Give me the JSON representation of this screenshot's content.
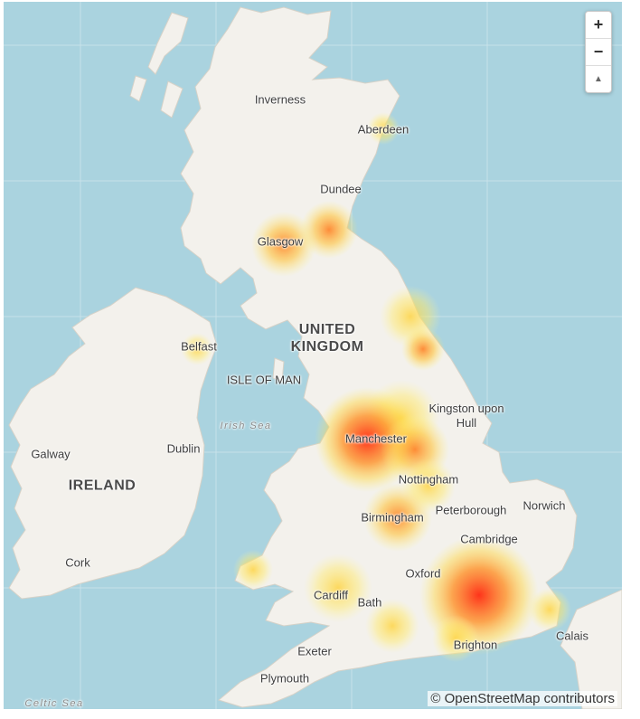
{
  "map": {
    "country_labels": [
      {
        "id": "uk",
        "text": "UNITED\nKINGDOM"
      },
      {
        "id": "ireland",
        "text": "IRELAND"
      }
    ],
    "place_labels": [
      {
        "id": "inverness",
        "text": "Inverness"
      },
      {
        "id": "aberdeen",
        "text": "Aberdeen"
      },
      {
        "id": "dundee",
        "text": "Dundee"
      },
      {
        "id": "glasgow",
        "text": "Glasgow"
      },
      {
        "id": "belfast",
        "text": "Belfast"
      },
      {
        "id": "isle-of-man",
        "text": "ISLE OF MAN"
      },
      {
        "id": "galway",
        "text": "Galway"
      },
      {
        "id": "dublin",
        "text": "Dublin"
      },
      {
        "id": "cork",
        "text": "Cork"
      },
      {
        "id": "kingston",
        "text": "Kingston upon\nHull"
      },
      {
        "id": "manchester",
        "text": "Manchester"
      },
      {
        "id": "nottingham",
        "text": "Nottingham"
      },
      {
        "id": "birmingham",
        "text": "Birmingham"
      },
      {
        "id": "peterborough",
        "text": "Peterborough"
      },
      {
        "id": "norwich",
        "text": "Norwich"
      },
      {
        "id": "cambridge",
        "text": "Cambridge"
      },
      {
        "id": "oxford",
        "text": "Oxford"
      },
      {
        "id": "cardiff",
        "text": "Cardiff"
      },
      {
        "id": "bath",
        "text": "Bath"
      },
      {
        "id": "calais",
        "text": "Calais"
      },
      {
        "id": "exeter",
        "text": "Exeter"
      },
      {
        "id": "brighton",
        "text": "Brighton"
      },
      {
        "id": "plymouth",
        "text": "Plymouth"
      }
    ],
    "sea_labels": [
      {
        "id": "irish-sea",
        "text": "Irish Sea"
      },
      {
        "id": "celtic-sea",
        "text": "Celtic Sea"
      }
    ],
    "heat_spots": [
      {
        "place": "glasgow",
        "intensity": 0.45
      },
      {
        "place": "edinburgh",
        "intensity": 0.5
      },
      {
        "place": "newcastle",
        "intensity": 0.45
      },
      {
        "place": "middlesbrough",
        "intensity": 0.55
      },
      {
        "place": "leeds",
        "intensity": 0.55
      },
      {
        "place": "manchester",
        "intensity": 1.0
      },
      {
        "place": "sheffield",
        "intensity": 0.75
      },
      {
        "place": "nottingham",
        "intensity": 0.5
      },
      {
        "place": "birmingham",
        "intensity": 0.7
      },
      {
        "place": "london",
        "intensity": 1.0
      },
      {
        "place": "cardiff",
        "intensity": 0.35
      },
      {
        "place": "bristol",
        "intensity": 0.45
      },
      {
        "place": "brighton",
        "intensity": 0.5
      }
    ],
    "zoom_in": "+",
    "zoom_out": "−",
    "compass": "▲",
    "attribution": "© OpenStreetMap contributors",
    "colors": {
      "sea": "#aad3df",
      "land": "#f3f1ec",
      "heat_low": "#ffe04a",
      "heat_mid": "#ff9a1f",
      "heat_high": "#ff2a10"
    }
  }
}
